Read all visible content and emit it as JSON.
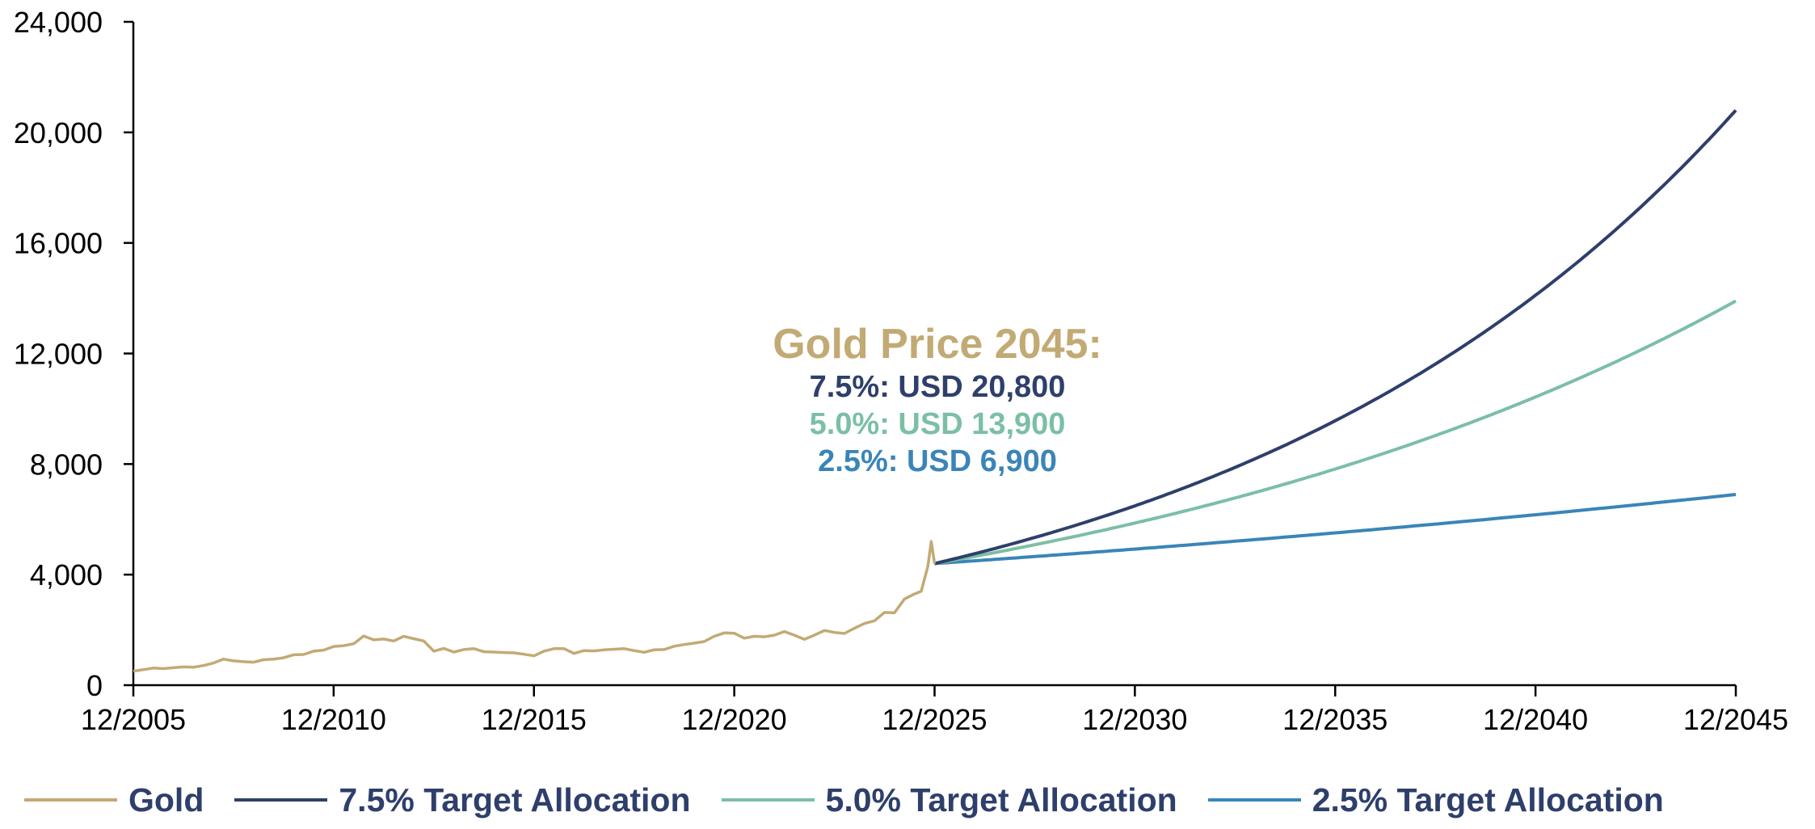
{
  "chart_data": {
    "type": "line",
    "title": "",
    "xlabel": "",
    "ylabel": "",
    "xlim": [
      "12/2005",
      "12/2045"
    ],
    "ylim": [
      0,
      24000
    ],
    "x_ticks": [
      "12/2005",
      "12/2010",
      "12/2015",
      "12/2020",
      "12/2025",
      "12/2030",
      "12/2035",
      "12/2040",
      "12/2045"
    ],
    "y_ticks": [
      "0",
      "4,000",
      "8,000",
      "12,000",
      "16,000",
      "20,000",
      "24,000"
    ],
    "grid": false,
    "legend_position": "bottom",
    "annotation": {
      "title": "Gold Price 2045:",
      "lines": [
        {
          "text": "7.5%: USD 20,800",
          "color": "#2e3f6b"
        },
        {
          "text": "5.0%: USD 13,900",
          "color": "#7bbfa4"
        },
        {
          "text": "2.5%: USD 6,900",
          "color": "#3a85b8"
        }
      ],
      "title_color": "#c2aa74"
    },
    "series": [
      {
        "name": "Gold",
        "color": "#c2aa74",
        "points": [
          [
            "2005-12",
            510
          ],
          [
            "2006-03",
            560
          ],
          [
            "2006-06",
            620
          ],
          [
            "2006-09",
            600
          ],
          [
            "2006-12",
            630
          ],
          [
            "2007-03",
            660
          ],
          [
            "2007-06",
            650
          ],
          [
            "2007-09",
            710
          ],
          [
            "2007-12",
            800
          ],
          [
            "2008-03",
            940
          ],
          [
            "2008-06",
            880
          ],
          [
            "2008-09",
            850
          ],
          [
            "2008-12",
            830
          ],
          [
            "2009-03",
            920
          ],
          [
            "2009-06",
            940
          ],
          [
            "2009-09",
            990
          ],
          [
            "2009-12",
            1100
          ],
          [
            "2010-03",
            1110
          ],
          [
            "2010-06",
            1230
          ],
          [
            "2010-09",
            1270
          ],
          [
            "2010-12",
            1400
          ],
          [
            "2011-03",
            1430
          ],
          [
            "2011-06",
            1500
          ],
          [
            "2011-09",
            1780
          ],
          [
            "2011-12",
            1640
          ],
          [
            "2012-03",
            1670
          ],
          [
            "2012-06",
            1600
          ],
          [
            "2012-09",
            1770
          ],
          [
            "2012-12",
            1680
          ],
          [
            "2013-03",
            1600
          ],
          [
            "2013-06",
            1230
          ],
          [
            "2013-09",
            1330
          ],
          [
            "2013-12",
            1200
          ],
          [
            "2014-03",
            1290
          ],
          [
            "2014-06",
            1320
          ],
          [
            "2014-09",
            1210
          ],
          [
            "2014-12",
            1200
          ],
          [
            "2015-03",
            1180
          ],
          [
            "2015-06",
            1170
          ],
          [
            "2015-09",
            1120
          ],
          [
            "2015-12",
            1060
          ],
          [
            "2016-03",
            1230
          ],
          [
            "2016-06",
            1320
          ],
          [
            "2016-09",
            1320
          ],
          [
            "2016-12",
            1150
          ],
          [
            "2017-03",
            1250
          ],
          [
            "2017-06",
            1240
          ],
          [
            "2017-09",
            1280
          ],
          [
            "2017-12",
            1300
          ],
          [
            "2018-03",
            1320
          ],
          [
            "2018-06",
            1250
          ],
          [
            "2018-09",
            1190
          ],
          [
            "2018-12",
            1280
          ],
          [
            "2019-03",
            1290
          ],
          [
            "2019-06",
            1410
          ],
          [
            "2019-09",
            1470
          ],
          [
            "2019-12",
            1520
          ],
          [
            "2020-03",
            1580
          ],
          [
            "2020-06",
            1770
          ],
          [
            "2020-09",
            1890
          ],
          [
            "2020-12",
            1880
          ],
          [
            "2021-03",
            1700
          ],
          [
            "2021-06",
            1770
          ],
          [
            "2021-09",
            1750
          ],
          [
            "2021-12",
            1810
          ],
          [
            "2022-03",
            1940
          ],
          [
            "2022-06",
            1810
          ],
          [
            "2022-09",
            1660
          ],
          [
            "2022-12",
            1810
          ],
          [
            "2023-03",
            1980
          ],
          [
            "2023-06",
            1910
          ],
          [
            "2023-09",
            1870
          ],
          [
            "2023-12",
            2060
          ],
          [
            "2024-03",
            2230
          ],
          [
            "2024-06",
            2330
          ],
          [
            "2024-09",
            2630
          ],
          [
            "2024-12",
            2620
          ],
          [
            "2025-03",
            3120
          ],
          [
            "2025-06",
            3300
          ],
          [
            "2025-08",
            3400
          ],
          [
            "2025-09",
            3850
          ],
          [
            "2025-10",
            4300
          ],
          [
            "2025-11",
            5200
          ],
          [
            "2025-12",
            4400
          ]
        ]
      },
      {
        "name": "7.5% Target Allocation",
        "color": "#2e3f6b",
        "start": [
          "2025-12",
          4400
        ],
        "end": [
          "2045-12",
          20800
        ]
      },
      {
        "name": "5.0% Target Allocation",
        "color": "#7bbfa4",
        "start": [
          "2025-12",
          4400
        ],
        "end": [
          "2045-12",
          13900
        ]
      },
      {
        "name": "2.5% Target Allocation",
        "color": "#3a85b8",
        "start": [
          "2025-12",
          4400
        ],
        "end": [
          "2045-12",
          6900
        ]
      }
    ]
  }
}
